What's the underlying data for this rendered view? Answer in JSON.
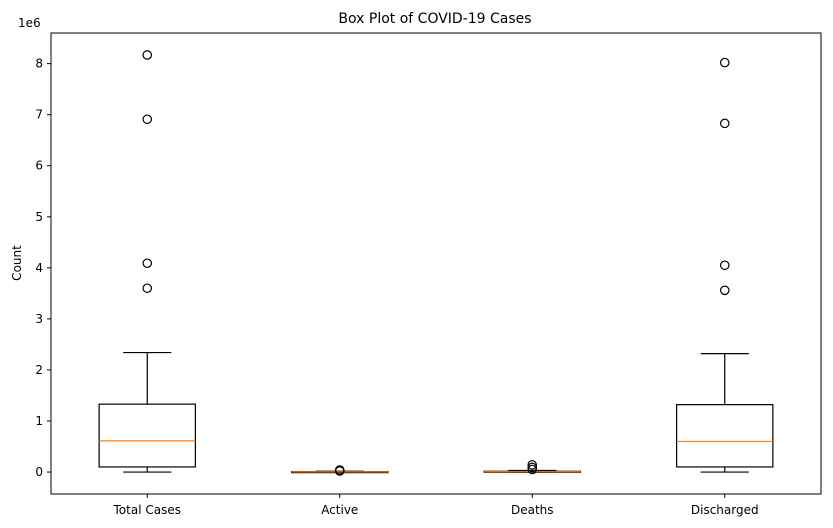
{
  "chart_data": {
    "type": "box",
    "title": "Box Plot of COVID-19 Cases",
    "xlabel": "",
    "ylabel": "Count",
    "y_multiplier_label": "1e6",
    "ylim": [
      -430000,
      8600000
    ],
    "yticks": [
      0,
      1000000,
      2000000,
      3000000,
      4000000,
      5000000,
      6000000,
      7000000,
      8000000
    ],
    "ytick_labels": [
      "0",
      "1",
      "2",
      "3",
      "4",
      "5",
      "6",
      "7",
      "8"
    ],
    "grid": false,
    "legend": "none",
    "categories": [
      "Total Cases",
      "Active",
      "Deaths",
      "Discharged"
    ],
    "boxes": [
      {
        "category": "Total Cases",
        "whisker_low": 0,
        "q1": 100000,
        "median": 610000,
        "q3": 1330000,
        "whisker_high": 2340000,
        "outliers": [
          3600000,
          4090000,
          6910000,
          8170000
        ]
      },
      {
        "category": "Active",
        "whisker_low": 0,
        "q1": 1000,
        "median": 3000,
        "q3": 8000,
        "whisker_high": 15000,
        "outliers": [
          22000,
          30000,
          40000
        ]
      },
      {
        "category": "Deaths",
        "whisker_low": 0,
        "q1": 1000,
        "median": 6000,
        "q3": 15000,
        "whisker_high": 30000,
        "outliers": [
          50000,
          90000,
          140000
        ]
      },
      {
        "category": "Discharged",
        "whisker_low": 0,
        "q1": 100000,
        "median": 600000,
        "q3": 1320000,
        "whisker_high": 2320000,
        "outliers": [
          3560000,
          4050000,
          6830000,
          8020000
        ]
      }
    ],
    "colors": {
      "box": "#000000",
      "median": "#ff7f0e",
      "outlier_edge": "#000000"
    }
  }
}
